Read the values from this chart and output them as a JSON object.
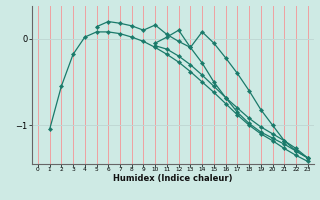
{
  "xlabel": "Humidex (Indice chaleur)",
  "background_color": "#ceeae4",
  "grid_color_v": "#f0a0a0",
  "grid_color_h": "#c0d8d4",
  "line_color": "#1a7a6a",
  "xlim": [
    -0.5,
    23.5
  ],
  "ylim": [
    -1.45,
    0.38
  ],
  "xticks": [
    0,
    1,
    2,
    3,
    4,
    5,
    6,
    7,
    8,
    9,
    10,
    11,
    12,
    13,
    14,
    15,
    16,
    17,
    18,
    19,
    20,
    21,
    22,
    23
  ],
  "yticks": [
    -1,
    0
  ],
  "series": [
    [
      null,
      -1.05,
      -0.55,
      -0.18,
      0.02,
      0.08,
      0.08,
      0.06,
      0.02,
      -0.03,
      -0.1,
      -0.18,
      -0.27,
      -0.38,
      -0.5,
      -0.62,
      -0.75,
      -0.88,
      -1.0,
      -1.1,
      -1.18,
      -1.27,
      -1.35,
      -1.42
    ],
    [
      null,
      null,
      null,
      null,
      null,
      0.14,
      0.2,
      0.18,
      0.15,
      0.1,
      0.16,
      0.05,
      -0.03,
      -0.1,
      0.08,
      -0.05,
      -0.22,
      -0.4,
      -0.6,
      -0.82,
      -1.0,
      -1.18,
      -1.3,
      -1.38
    ],
    [
      null,
      null,
      null,
      null,
      null,
      null,
      null,
      null,
      null,
      null,
      -0.05,
      0.02,
      0.1,
      -0.1,
      -0.28,
      -0.5,
      -0.68,
      -0.85,
      -0.98,
      -1.08,
      -1.15,
      -1.22,
      -1.3,
      -1.38
    ],
    [
      null,
      null,
      null,
      null,
      null,
      null,
      null,
      null,
      null,
      null,
      -0.08,
      -0.12,
      -0.2,
      -0.3,
      -0.42,
      -0.55,
      -0.68,
      -0.8,
      -0.92,
      -1.02,
      -1.1,
      -1.18,
      -1.27,
      -1.38
    ]
  ]
}
